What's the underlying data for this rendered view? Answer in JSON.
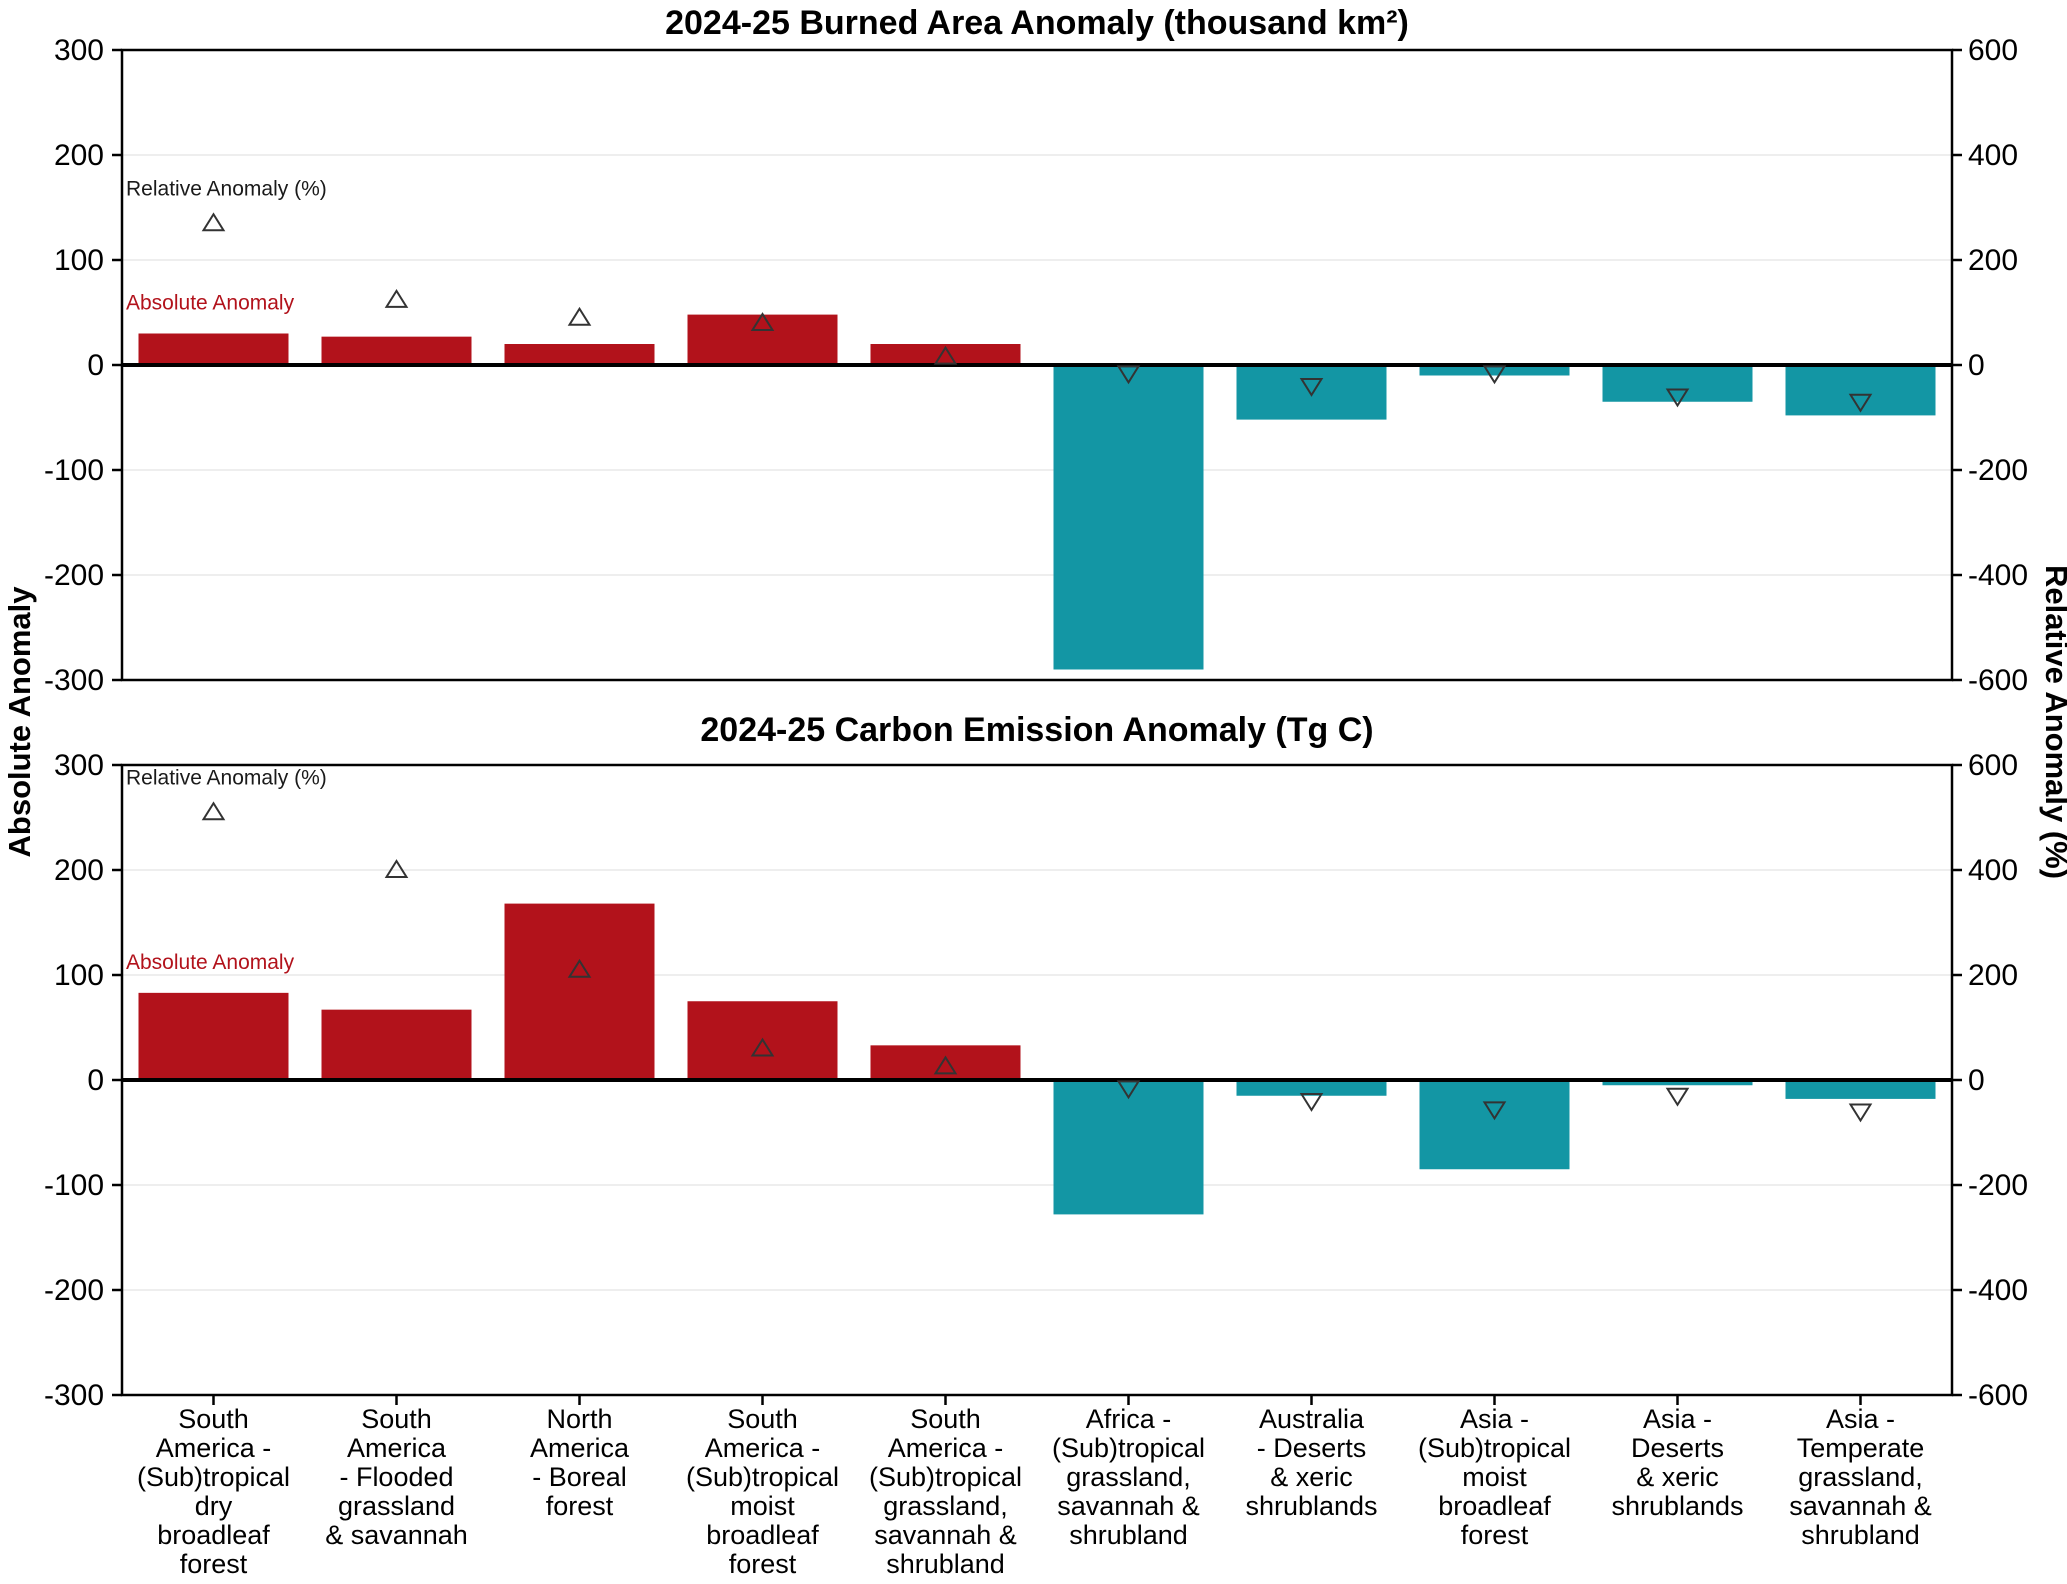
{
  "figure": {
    "background": "#ffffff",
    "left_axis_label": "Absolute Anomaly",
    "right_axis_label": "Relative Anomaly (%)",
    "colors": {
      "positive_bar": "#b2121b",
      "negative_bar": "#1396a4",
      "marker_stroke": "#333333",
      "axis": "#000000",
      "grid": "#e9e9e9",
      "absolute_label": "#b2121b",
      "relative_label": "#1a1a1a"
    }
  },
  "categories": [
    "South\nAmerica -\n(Sub)tropical\ndry\nbroadleaf\nforest",
    "South\nAmerica\n- Flooded\ngrassland\n& savannah",
    "North\nAmerica\n- Boreal\nforest",
    "South\nAmerica -\n(Sub)tropical\nmoist\nbroadleaf\nforest",
    "South\nAmerica -\n(Sub)tropical\ngrassland,\nsavannah &\nshrubland",
    "Africa -\n(Sub)tropical\ngrassland,\nsavannah &\nshrubland",
    "Australia\n- Deserts\n& xeric\nshrublands",
    "Asia -\n(Sub)tropical\nmoist\nbroadleaf\nforest",
    "Asia -\nDeserts\n& xeric\nshrublands",
    "Asia -\nTemperate\ngrassland,\nsavannah &\nshrubland"
  ],
  "chart_data": [
    {
      "type": "bar",
      "title": "2024-25 Burned Area Anomaly (thousand km²)",
      "axis_left": {
        "label": "Absolute Anomaly",
        "lim": [
          -300,
          300
        ],
        "ticks": [
          300,
          200,
          100,
          0,
          -100,
          -200,
          -300
        ]
      },
      "axis_right": {
        "label": "Relative Anomaly (%)",
        "lim": [
          -600,
          600
        ],
        "ticks": [
          600,
          400,
          200,
          0,
          -200,
          -400,
          -600
        ]
      },
      "annotations": {
        "relative_label": "Relative Anomaly (%)",
        "absolute_label": "Absolute Anomaly"
      },
      "grid": true,
      "legend_position": "none",
      "series": [
        {
          "name": "Absolute Anomaly",
          "axis": "left",
          "style": "bar",
          "values": [
            30,
            27,
            20,
            48,
            20,
            -290,
            -52,
            -10,
            -35,
            -48
          ]
        },
        {
          "name": "Relative Anomaly (%)",
          "axis": "right",
          "style": "triangle-marker",
          "values": [
            270,
            124,
            90,
            80,
            16,
            -16,
            -40,
            -16,
            -60,
            -70
          ]
        }
      ]
    },
    {
      "type": "bar",
      "title": "2024-25 Carbon Emission Anomaly (Tg C)",
      "axis_left": {
        "label": "Absolute Anomaly",
        "lim": [
          -300,
          300
        ],
        "ticks": [
          300,
          200,
          100,
          0,
          -100,
          -200,
          -300
        ]
      },
      "axis_right": {
        "label": "Relative Anomaly (%)",
        "lim": [
          -600,
          600
        ],
        "ticks": [
          600,
          400,
          200,
          0,
          -200,
          -400,
          -600
        ]
      },
      "annotations": {
        "relative_label": "Relative Anomaly (%)",
        "absolute_label": "Absolute Anomaly"
      },
      "grid": true,
      "legend_position": "none",
      "series": [
        {
          "name": "Absolute Anomaly",
          "axis": "left",
          "style": "bar",
          "values": [
            83,
            67,
            168,
            75,
            33,
            -128,
            -15,
            -85,
            -5,
            -18
          ]
        },
        {
          "name": "Relative Anomaly (%)",
          "axis": "right",
          "style": "triangle-marker",
          "values": [
            510,
            400,
            210,
            60,
            26,
            -16,
            -40,
            -56,
            -30,
            -60
          ]
        }
      ]
    }
  ]
}
